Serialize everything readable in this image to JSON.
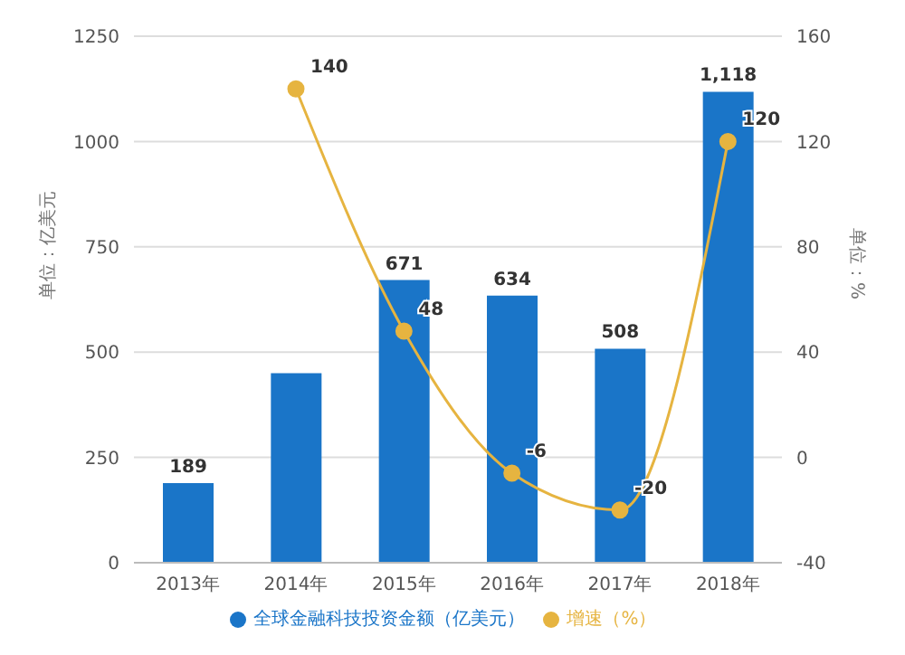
{
  "chart_data": {
    "type": "bar",
    "categories": [
      "2013年",
      "2014年",
      "2015年",
      "2016年",
      "2017年",
      "2018年"
    ],
    "series": [
      {
        "name": "全球金融科技投资金额（亿美元）",
        "color": "#1a75c8",
        "values": [
          189,
          450,
          671,
          634,
          508,
          1118
        ],
        "value_labels": [
          "189",
          null,
          "671",
          "634",
          "508",
          "1,118"
        ]
      },
      {
        "name": "增速（%）",
        "type": "line",
        "axis": "y2",
        "color": "#e6b440",
        "values": [
          null,
          140,
          48,
          -6,
          -20,
          120
        ],
        "value_labels": [
          null,
          "140",
          "48",
          "-6",
          "-20",
          "120"
        ]
      }
    ],
    "ylabel": "单位：亿美元",
    "y2label": "单位：%",
    "ylim": [
      0,
      1250
    ],
    "yticks": [
      0,
      250,
      500,
      750,
      1000,
      1250
    ],
    "y2lim": [
      -40,
      160
    ],
    "y2ticks": [
      -40,
      0,
      40,
      80,
      120,
      160
    ],
    "grid": "y",
    "legend": "bottom",
    "marker": "circle"
  }
}
